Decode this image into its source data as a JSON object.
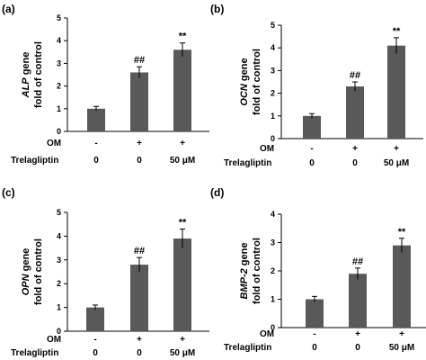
{
  "chart_data": [
    {
      "type": "bar",
      "panel_label": "(a)",
      "ylabel": {
        "gene": "ALP",
        "rest": " gene",
        "line2": "fold of control"
      },
      "ylim": [
        0,
        5
      ],
      "yticks": [
        0,
        1,
        2,
        3,
        4,
        5
      ],
      "categories": [
        "1",
        "2",
        "3"
      ],
      "values": [
        1.0,
        2.6,
        3.6
      ],
      "errors": [
        0.1,
        0.25,
        0.3
      ],
      "annotations": [
        "",
        "##",
        "**"
      ],
      "rows": [
        {
          "label": "OM",
          "values": [
            "-",
            "+",
            "+"
          ]
        },
        {
          "label": "Trelagliptin",
          "values": [
            "0",
            "0",
            "50 μM"
          ]
        }
      ]
    },
    {
      "type": "bar",
      "panel_label": "(b)",
      "ylabel": {
        "gene": "OCN",
        "rest": " gene",
        "line2": "fold of control"
      },
      "ylim": [
        0,
        5
      ],
      "yticks": [
        0,
        1,
        2,
        3,
        4,
        5
      ],
      "categories": [
        "1",
        "2",
        "3"
      ],
      "values": [
        1.0,
        2.3,
        4.1
      ],
      "errors": [
        0.1,
        0.2,
        0.35
      ],
      "annotations": [
        "",
        "##",
        "**"
      ],
      "rows": [
        {
          "label": "OM",
          "values": [
            "-",
            "+",
            "+"
          ]
        },
        {
          "label": "Trelagliptin",
          "values": [
            "0",
            "0",
            "50 μM"
          ]
        }
      ]
    },
    {
      "type": "bar",
      "panel_label": "(c)",
      "ylabel": {
        "gene": "OPN",
        "rest": " gene",
        "line2": "fold of control"
      },
      "ylim": [
        0,
        5
      ],
      "yticks": [
        0,
        1,
        2,
        3,
        4,
        5
      ],
      "categories": [
        "1",
        "2",
        "3"
      ],
      "values": [
        1.0,
        2.8,
        3.9
      ],
      "errors": [
        0.1,
        0.3,
        0.4
      ],
      "annotations": [
        "",
        "##",
        "**"
      ],
      "rows": [
        {
          "label": "OM",
          "values": [
            "-",
            "+",
            "+"
          ]
        },
        {
          "label": "Trelagliptin",
          "values": [
            "0",
            "0",
            "50 μM"
          ]
        }
      ]
    },
    {
      "type": "bar",
      "panel_label": "(d)",
      "ylabel": {
        "gene": "BMP-2",
        "rest": " gene",
        "line2": "fold of control"
      },
      "ylim": [
        0,
        4
      ],
      "yticks": [
        0,
        1,
        2,
        3,
        4
      ],
      "categories": [
        "1",
        "2",
        "3"
      ],
      "values": [
        1.0,
        1.9,
        2.9
      ],
      "errors": [
        0.1,
        0.2,
        0.25
      ],
      "annotations": [
        "",
        "##",
        "**"
      ],
      "rows": [
        {
          "label": "OM",
          "values": [
            "-",
            "+",
            "+"
          ]
        },
        {
          "label": "Trelagliptin",
          "values": [
            "0",
            "0",
            "50 μM"
          ]
        }
      ]
    }
  ],
  "colors": {
    "bar": "#595959",
    "axis": "#000000",
    "text": "#000000"
  }
}
